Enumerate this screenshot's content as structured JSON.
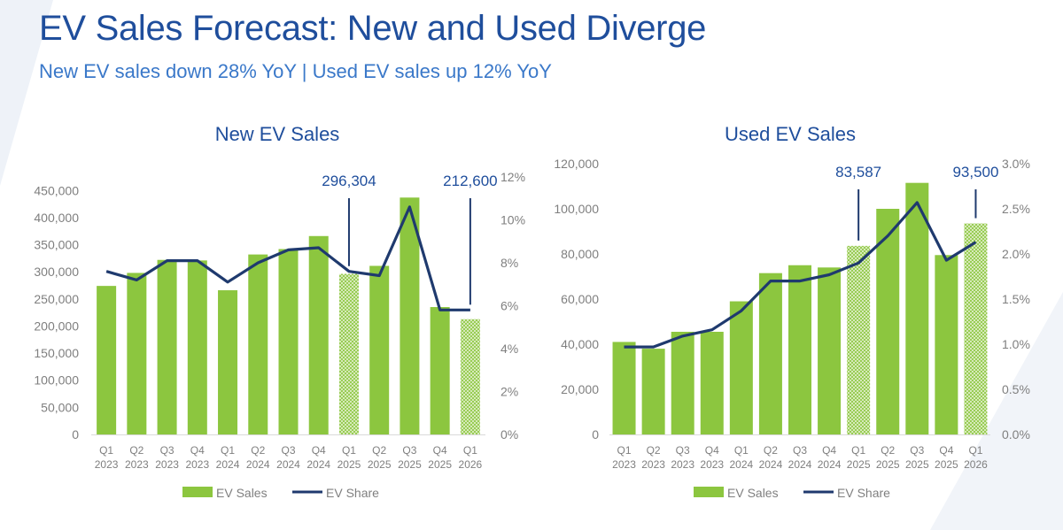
{
  "header": {
    "title": "EV Sales Forecast: New and Used Diverge",
    "subtitle": "New EV sales down 28% YoY | Used EV sales up 12% YoY"
  },
  "colors": {
    "title": "#1f4e9c",
    "subtitle": "#3a78c9",
    "bar": "#8cc63f",
    "line": "#1f3a6e",
    "axis_text": "#7f7f7f"
  },
  "chart_data": [
    {
      "type": "bar",
      "title": "New EV Sales",
      "categories": [
        "Q1 2023",
        "Q2 2023",
        "Q3 2023",
        "Q4 2023",
        "Q1 2024",
        "Q2 2024",
        "Q3 2024",
        "Q4 2024",
        "Q1 2025",
        "Q2 2025",
        "Q3 2025",
        "Q4 2025",
        "Q1 2026"
      ],
      "category_lines": [
        [
          "Q1",
          "2023"
        ],
        [
          "Q2",
          "2023"
        ],
        [
          "Q3",
          "2023"
        ],
        [
          "Q4",
          "2023"
        ],
        [
          "Q1",
          "2024"
        ],
        [
          "Q2",
          "2024"
        ],
        [
          "Q3",
          "2024"
        ],
        [
          "Q4",
          "2024"
        ],
        [
          "Q1",
          "2025"
        ],
        [
          "Q2",
          "2025"
        ],
        [
          "Q3",
          "2025"
        ],
        [
          "Q4",
          "2025"
        ],
        [
          "Q1",
          "2026"
        ]
      ],
      "series": [
        {
          "name": "EV Sales",
          "type": "bar",
          "axis": "left",
          "values": [
            274000,
            298000,
            322000,
            321000,
            266000,
            332000,
            342000,
            366000,
            296304,
            311000,
            437000,
            235000,
            212600
          ],
          "hatched": [
            false,
            false,
            false,
            false,
            false,
            false,
            false,
            false,
            true,
            false,
            false,
            false,
            true
          ]
        },
        {
          "name": "EV Share",
          "type": "line",
          "axis": "right",
          "values": [
            7.6,
            7.2,
            8.1,
            8.1,
            7.1,
            8.0,
            8.6,
            8.7,
            7.6,
            7.4,
            10.6,
            5.8,
            5.8
          ]
        }
      ],
      "ylim": [
        0,
        475000
      ],
      "yticks": [
        0,
        50000,
        100000,
        150000,
        200000,
        250000,
        300000,
        350000,
        400000,
        450000
      ],
      "ytick_labels": [
        "0",
        "50,000",
        "100,000",
        "150,000",
        "200,000",
        "250,000",
        "300,000",
        "350,000",
        "400,000",
        "450,000"
      ],
      "y2lim": [
        0,
        12
      ],
      "y2ticks": [
        0,
        2,
        4,
        6,
        8,
        10,
        12
      ],
      "y2tick_labels": [
        "0%",
        "2%",
        "4%",
        "6%",
        "8%",
        "10%",
        "12%"
      ],
      "annotations": [
        {
          "text": "296,304",
          "index": 8
        },
        {
          "text": "212,600",
          "index": 12
        }
      ],
      "legend": {
        "position": "bottom",
        "items": [
          "EV Sales",
          "EV Share"
        ]
      },
      "grid": false
    },
    {
      "type": "bar",
      "title": "Used EV Sales",
      "categories": [
        "Q1 2023",
        "Q2 2023",
        "Q3 2023",
        "Q4 2023",
        "Q1 2024",
        "Q2 2024",
        "Q3 2024",
        "Q4 2024",
        "Q1 2025",
        "Q2 2025",
        "Q3 2025",
        "Q4 2025",
        "Q1 2026"
      ],
      "category_lines": [
        [
          "Q1",
          "2023"
        ],
        [
          "Q2",
          "2023"
        ],
        [
          "Q3",
          "2023"
        ],
        [
          "Q4",
          "2023"
        ],
        [
          "Q1",
          "2024"
        ],
        [
          "Q2",
          "2024"
        ],
        [
          "Q3",
          "2024"
        ],
        [
          "Q4",
          "2024"
        ],
        [
          "Q1",
          "2025"
        ],
        [
          "Q2",
          "2025"
        ],
        [
          "Q3",
          "2025"
        ],
        [
          "Q4",
          "2025"
        ],
        [
          "Q1",
          "2026"
        ]
      ],
      "series": [
        {
          "name": "EV Sales",
          "type": "bar",
          "axis": "left",
          "values": [
            41000,
            38000,
            45500,
            45500,
            59000,
            71500,
            75000,
            74000,
            83587,
            100000,
            111500,
            79500,
            93500
          ],
          "hatched": [
            false,
            false,
            false,
            false,
            false,
            false,
            false,
            false,
            true,
            false,
            false,
            false,
            true
          ]
        },
        {
          "name": "EV Share",
          "type": "line",
          "axis": "right",
          "values": [
            0.97,
            0.97,
            1.09,
            1.16,
            1.37,
            1.7,
            1.7,
            1.77,
            1.9,
            2.2,
            2.57,
            1.93,
            2.13
          ]
        }
      ],
      "ylim": [
        0,
        120000
      ],
      "yticks": [
        0,
        20000,
        40000,
        60000,
        80000,
        100000,
        120000
      ],
      "ytick_labels": [
        "0",
        "20,000",
        "40,000",
        "60,000",
        "80,000",
        "100,000",
        "120,000"
      ],
      "y2lim": [
        0,
        3.0
      ],
      "y2ticks": [
        0,
        0.5,
        1.0,
        1.5,
        2.0,
        2.5,
        3.0
      ],
      "y2tick_labels": [
        "0.0%",
        "0.5%",
        "1.0%",
        "1.5%",
        "2.0%",
        "2.5%",
        "3.0%"
      ],
      "annotations": [
        {
          "text": "83,587",
          "index": 8
        },
        {
          "text": "93,500",
          "index": 12
        }
      ],
      "legend": {
        "position": "bottom",
        "items": [
          "EV Sales",
          "EV Share"
        ]
      },
      "grid": false
    }
  ]
}
